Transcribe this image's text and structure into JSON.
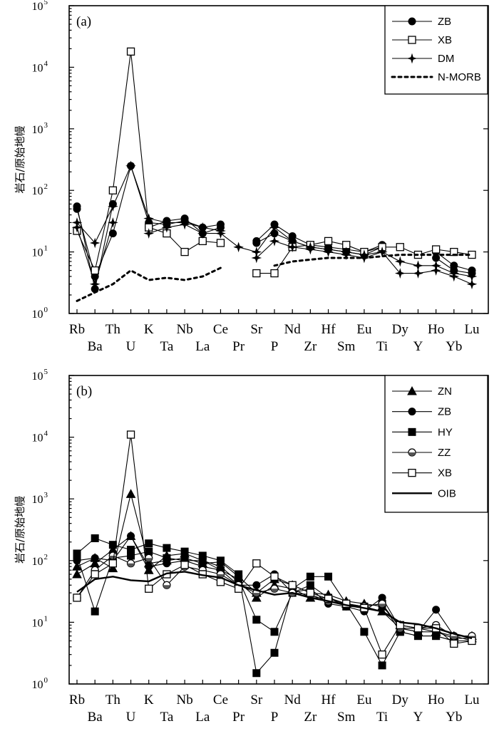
{
  "chart_data": [
    {
      "type": "line",
      "panel_label": "(a)",
      "ylabel": "岩石/原始地幔",
      "yscale": "log",
      "ylim": [
        1,
        100000
      ],
      "yticks": [
        {
          "value": 1,
          "base": "10",
          "exp": "0"
        },
        {
          "value": 10,
          "base": "10",
          "exp": "1"
        },
        {
          "value": 100,
          "base": "10",
          "exp": "2"
        },
        {
          "value": 1000,
          "base": "10",
          "exp": "3"
        },
        {
          "value": 10000,
          "base": "10",
          "exp": "4"
        },
        {
          "value": 100000,
          "base": "10",
          "exp": "5"
        }
      ],
      "categories": [
        "Rb",
        "Ba",
        "Th",
        "U",
        "K",
        "Ta",
        "Nb",
        "La",
        "Ce",
        "Pr",
        "Sr",
        "P",
        "Nd",
        "Zr",
        "Hf",
        "Sm",
        "Eu",
        "Ti",
        "Dy",
        "Y",
        "Ho",
        "Yb",
        "Lu"
      ],
      "legend_position": "top-right",
      "series": [
        {
          "name": "ZB",
          "marker": "circle-filled",
          "color": "#000000",
          "values": [
            50,
            4,
            20,
            250,
            30,
            28,
            32,
            25,
            28,
            null,
            15,
            28,
            18,
            13,
            12,
            11,
            10,
            13,
            null,
            null,
            10,
            6,
            5
          ]
        },
        {
          "name": "ZB",
          "marker": "circle-filled",
          "color": "#000000",
          "values": [
            55,
            2.5,
            60,
            null,
            25,
            32,
            35,
            20,
            25,
            null,
            14,
            20,
            15,
            12,
            11,
            10,
            9,
            12,
            null,
            null,
            8,
            5,
            4.5
          ]
        },
        {
          "name": "XB",
          "marker": "square-open",
          "color": "#000000",
          "values": [
            22,
            5,
            100,
            18000,
            25,
            20,
            10,
            15,
            14,
            null,
            4.5,
            4.5,
            12,
            13,
            15,
            13,
            10,
            12,
            12,
            9,
            11,
            10,
            9
          ]
        },
        {
          "name": "DM",
          "marker": "star",
          "color": "#000000",
          "values": [
            30,
            14,
            55,
            250,
            35,
            30,
            30,
            25,
            22,
            null,
            8,
            15,
            12,
            11,
            10,
            9,
            8,
            10,
            4.5,
            4.5,
            5,
            4,
            3
          ]
        },
        {
          "name": "DM",
          "marker": "star",
          "color": "#000000",
          "values": [
            25,
            3,
            30,
            null,
            20,
            25,
            28,
            20,
            20,
            12,
            10,
            25,
            15,
            12,
            11,
            10,
            9,
            10,
            7,
            6,
            6,
            4.5,
            4
          ]
        },
        {
          "name": "N-MORB",
          "marker": "none",
          "dash": true,
          "color": "#000000",
          "values": [
            1.6,
            2.2,
            3,
            5,
            3.5,
            3.8,
            3.5,
            4,
            5.5,
            null,
            null,
            6,
            7,
            7.5,
            8,
            8,
            8,
            8.5,
            9,
            9,
            9,
            9,
            9
          ]
        }
      ]
    },
    {
      "type": "line",
      "panel_label": "(b)",
      "ylabel": "岩石/原始地幔",
      "yscale": "log",
      "ylim": [
        1,
        100000
      ],
      "yticks": [
        {
          "value": 1,
          "base": "10",
          "exp": "0"
        },
        {
          "value": 10,
          "base": "10",
          "exp": "1"
        },
        {
          "value": 100,
          "base": "10",
          "exp": "2"
        },
        {
          "value": 1000,
          "base": "10",
          "exp": "3"
        },
        {
          "value": 10000,
          "base": "10",
          "exp": "4"
        },
        {
          "value": 100000,
          "base": "10",
          "exp": "5"
        }
      ],
      "categories": [
        "Rb",
        "Ba",
        "Th",
        "U",
        "K",
        "Ta",
        "Nb",
        "La",
        "Ce",
        "Pr",
        "Sr",
        "P",
        "Nd",
        "Zr",
        "Hf",
        "Sm",
        "Eu",
        "Ti",
        "Dy",
        "Y",
        "Ho",
        "Yb",
        "Lu"
      ],
      "legend_position": "top-right",
      "series": [
        {
          "name": "ZN",
          "marker": "triangle-filled",
          "color": "#000000",
          "values": [
            80,
            110,
            75,
            1200,
            90,
            100,
            110,
            90,
            95,
            55,
            30,
            50,
            40,
            30,
            28,
            22,
            20,
            18,
            9,
            8,
            7,
            6,
            6
          ]
        },
        {
          "name": "ZN",
          "marker": "triangle-filled",
          "color": "#000000",
          "values": [
            60,
            90,
            150,
            250,
            70,
            120,
            130,
            100,
            80,
            45,
            25,
            40,
            35,
            25,
            25,
            20,
            18,
            15,
            8,
            7,
            7,
            5.5,
            5.5
          ]
        },
        {
          "name": "ZB",
          "marker": "circle-filled",
          "color": "#000000",
          "values": [
            100,
            110,
            100,
            250,
            80,
            90,
            100,
            80,
            70,
            40,
            40,
            60,
            30,
            35,
            20,
            18,
            15,
            25,
            8,
            7,
            16,
            6,
            5
          ]
        },
        {
          "name": "HY",
          "marker": "square-filled",
          "color": "#000000",
          "values": [
            130,
            230,
            180,
            150,
            190,
            160,
            140,
            120,
            100,
            60,
            1.5,
            3.2,
            35,
            55,
            55,
            20,
            7,
            2,
            7,
            6,
            6,
            5,
            5
          ]
        },
        {
          "name": "HY",
          "marker": "square-filled",
          "color": "#000000",
          "values": [
            120,
            15,
            110,
            120,
            140,
            110,
            100,
            100,
            70,
            50,
            11,
            7,
            30,
            40,
            25,
            18,
            18,
            20,
            7,
            6,
            6,
            5,
            5
          ]
        },
        {
          "name": "ZZ",
          "marker": "circle-half",
          "color": "#000000",
          "values": [
            25,
            70,
            120,
            90,
            110,
            40,
            80,
            70,
            60,
            40,
            30,
            35,
            30,
            28,
            22,
            20,
            18,
            20,
            8,
            8,
            9,
            6,
            6
          ]
        },
        {
          "name": "XB",
          "marker": "square-open",
          "color": "#000000",
          "values": [
            25,
            60,
            90,
            11000,
            35,
            60,
            85,
            60,
            45,
            35,
            90,
            55,
            40,
            30,
            24,
            20,
            17,
            3,
            9,
            8,
            8,
            4.5,
            5
          ]
        },
        {
          "name": "OIB",
          "marker": "none",
          "thick": true,
          "color": "#000000",
          "values": [
            31,
            50,
            55,
            48,
            46,
            62,
            66,
            58,
            53,
            40,
            33,
            28,
            30,
            25,
            22,
            19,
            17,
            15,
            10,
            9.3,
            8,
            6.5,
            5.5
          ]
        }
      ]
    }
  ]
}
